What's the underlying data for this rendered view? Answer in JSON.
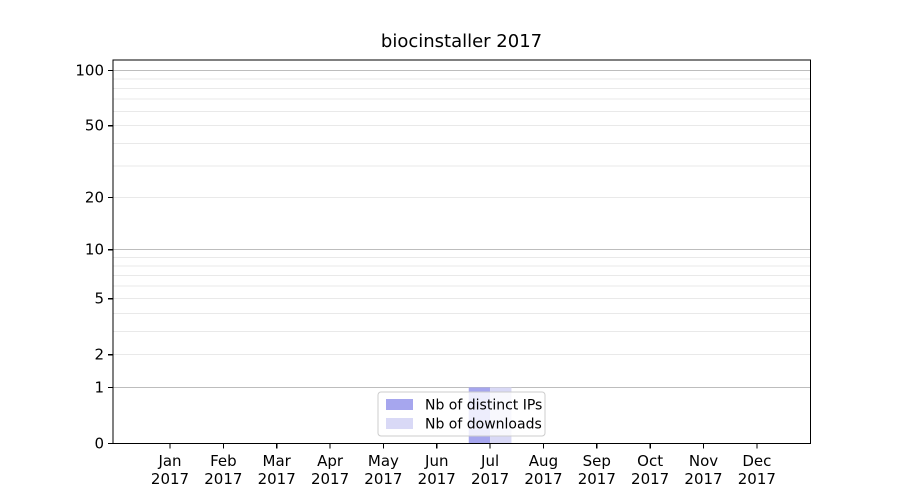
{
  "figure": {
    "title": "biocinstaller 2017"
  },
  "chart_data": {
    "type": "bar",
    "title": "biocinstaller 2017",
    "categories": [
      "Jan 2017",
      "Feb 2017",
      "Mar 2017",
      "Apr 2017",
      "May 2017",
      "Jun 2017",
      "Jul 2017",
      "Aug 2017",
      "Sep 2017",
      "Oct 2017",
      "Nov 2017",
      "Dec 2017"
    ],
    "series": [
      {
        "name": "Nb of distinct IPs",
        "color": "#a6a6ee",
        "values": [
          0,
          0,
          0,
          0,
          0,
          0,
          1,
          0,
          0,
          0,
          0,
          0
        ]
      },
      {
        "name": "Nb of downloads",
        "color": "#d9d9f6",
        "values": [
          0,
          0,
          0,
          0,
          0,
          0,
          1,
          0,
          0,
          0,
          0,
          0
        ]
      }
    ],
    "xlabel": "",
    "ylabel": "",
    "yscale": "log1p",
    "yticks": [
      0,
      1,
      2,
      5,
      10,
      20,
      50,
      100
    ],
    "ylim": [
      0,
      114
    ],
    "grid": {
      "axis": "y",
      "major": [
        1,
        10,
        100
      ],
      "minor": [
        2,
        3,
        4,
        5,
        6,
        7,
        8,
        9,
        20,
        30,
        40,
        50,
        60,
        70,
        80,
        90
      ]
    },
    "legend": {
      "position": "lower center",
      "entries": [
        "Nb of distinct IPs",
        "Nb of downloads"
      ]
    }
  },
  "colors": {
    "bar_distinct_ips": "#a6a6ee",
    "bar_downloads": "#d9d9f6",
    "grid_major": "#bdbdbd",
    "grid_minor": "#e9e9e9",
    "axis_frame": "#000000",
    "legend_border": "#cccccc",
    "legend_bg": "rgba(255,255,255,0.8)",
    "text": "#000000"
  }
}
